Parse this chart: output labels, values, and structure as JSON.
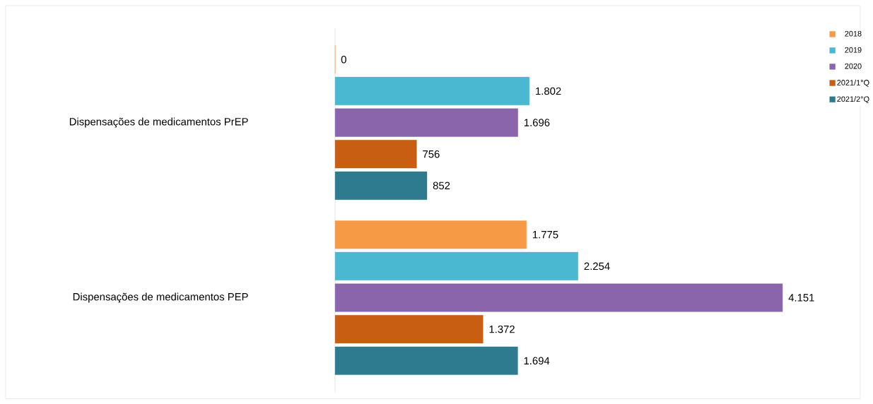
{
  "chart_data": {
    "type": "bar",
    "orientation": "horizontal",
    "categories": [
      "Dispensações de medicamentos PrEP",
      "Dispensações de medicamentos PEP"
    ],
    "series": [
      {
        "name": "2018",
        "color": "#f79a46",
        "values": [
          0,
          1775
        ],
        "value_labels": [
          "0",
          "1.775"
        ]
      },
      {
        "name": "2019",
        "color": "#4bb8d2",
        "values": [
          1802,
          2254
        ],
        "value_labels": [
          "1.802",
          "2.254"
        ]
      },
      {
        "name": "2020",
        "color": "#8a65ac",
        "values": [
          1696,
          4151
        ],
        "value_labels": [
          "1.696",
          "4.151"
        ]
      },
      {
        "name": "2021/1°Q",
        "color": "#c85e12",
        "values": [
          756,
          1372
        ],
        "value_labels": [
          "756",
          "1.372"
        ]
      },
      {
        "name": "2021/2°Q",
        "color": "#2e7a8f",
        "values": [
          852,
          1694
        ],
        "value_labels": [
          "852",
          "1.694"
        ]
      }
    ],
    "legend": "top right"
  }
}
